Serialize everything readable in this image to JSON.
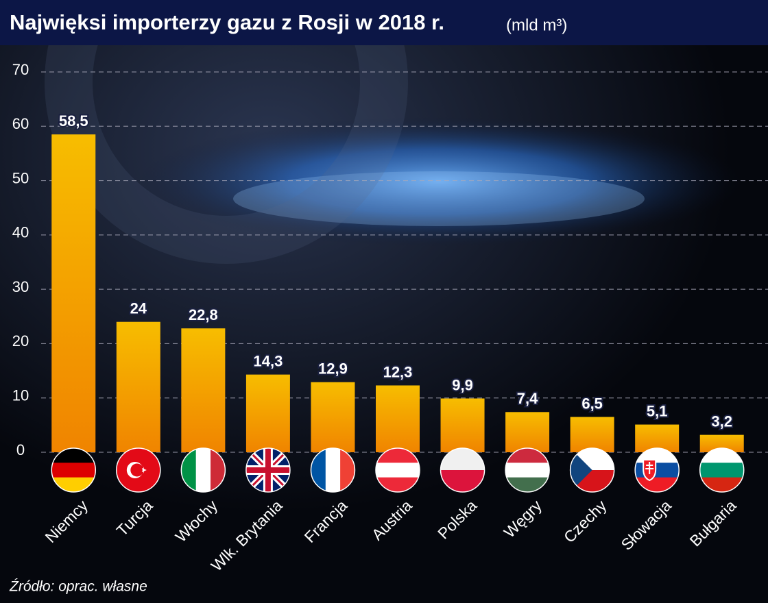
{
  "chart_data": {
    "type": "bar",
    "title": "Najwięksi importerzy gazu z Rosji w 2018 r.",
    "unit": "(mld m³)",
    "source": "Źródło: oprac. własne",
    "categories": [
      "Niemcy",
      "Turcja",
      "Włochy",
      "Wlk. Brytania",
      "Francja",
      "Austria",
      "Polska",
      "Węgry",
      "Czechy",
      "Słowacja",
      "Bułgaria"
    ],
    "values": [
      58.5,
      24,
      22.8,
      14.3,
      12.9,
      12.3,
      9.9,
      7.4,
      6.5,
      5.1,
      3.2
    ],
    "value_labels": [
      "58,5",
      "24",
      "22,8",
      "14,3",
      "12,9",
      "12,3",
      "9,9",
      "7,4",
      "6,5",
      "5,1",
      "3,2"
    ],
    "color": "#f39a00",
    "ylim": [
      0,
      70
    ],
    "yticks": [
      0,
      10,
      20,
      30,
      40,
      50,
      60,
      70
    ],
    "grid": true
  }
}
